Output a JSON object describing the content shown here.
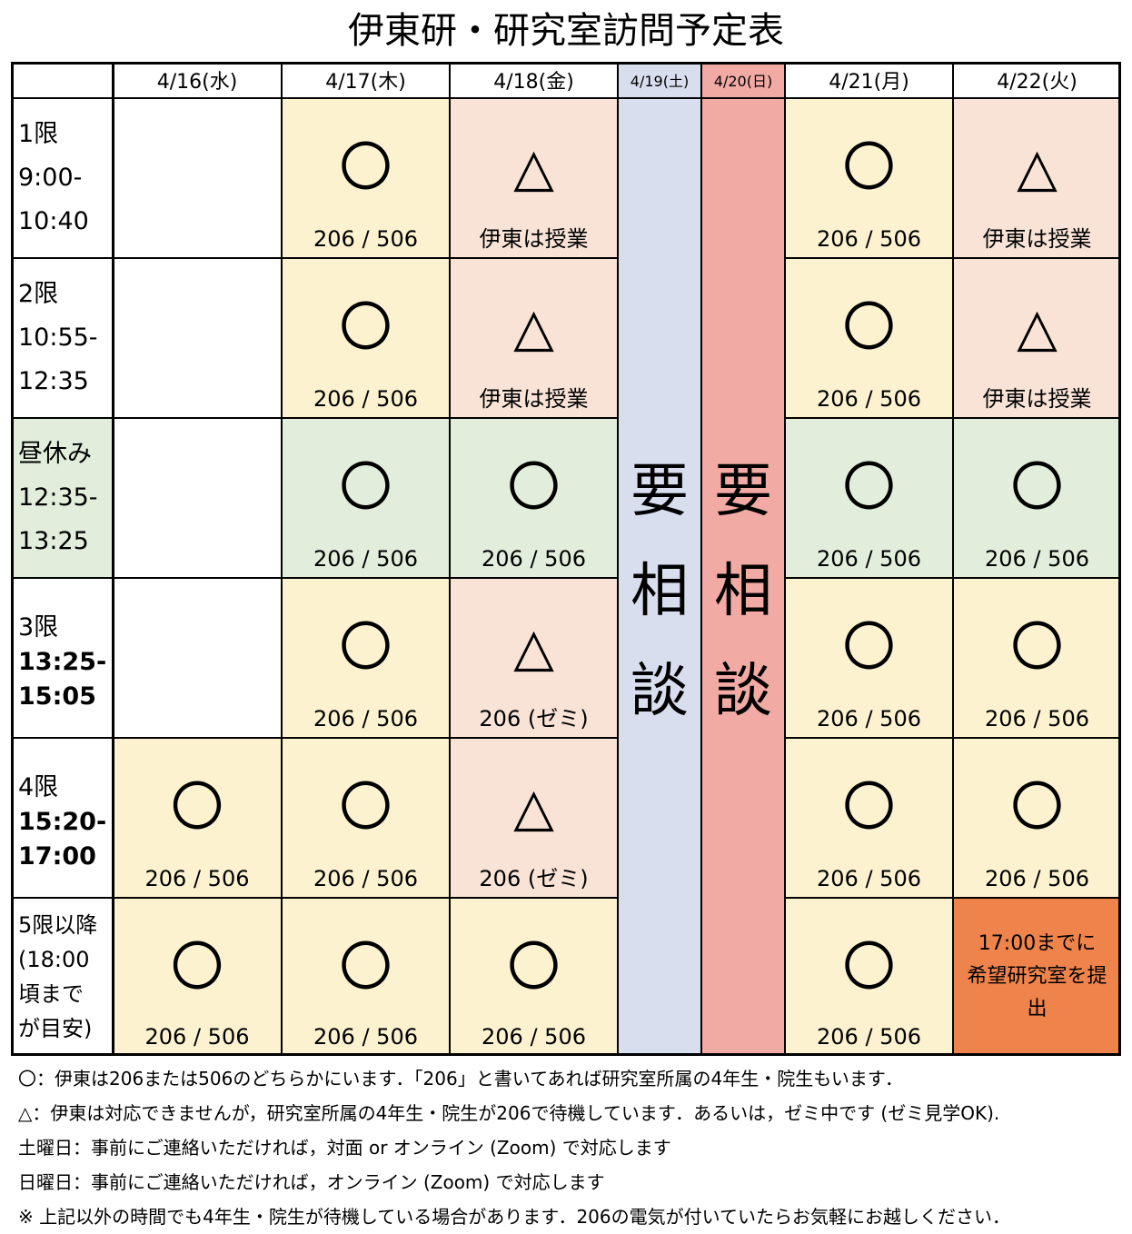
{
  "title": "伊東研・研究室訪問予定表",
  "days": [
    "4/16(水)",
    "4/17(木)",
    "4/18(金)",
    "4/19(土)",
    "4/20(日)",
    "4/21(月)",
    "4/22(火)"
  ],
  "periods": [
    {
      "name": "1限",
      "time_start": "9:00-",
      "time_end": "10:40"
    },
    {
      "name": "2限",
      "time_start": "10:55-",
      "time_end": "12:35"
    },
    {
      "name": "昼休み",
      "time_start": "12:35-",
      "time_end": "13:25"
    },
    {
      "name": "3限",
      "time_start": "13:25-",
      "time_end": "15:05"
    },
    {
      "name": "4限",
      "time_start": "15:20-",
      "time_end": "17:00"
    },
    {
      "name": "5限以降",
      "time_start": "(18:00",
      "time_end": "頃まで",
      "time_extra": "が目安)"
    }
  ],
  "cells": {
    "r0": {
      "d1": {
        "sym": "〇",
        "note": "206 / 506"
      },
      "d2": {
        "sym": "△",
        "note": "伊東は授業"
      },
      "d5": {
        "sym": "〇",
        "note": "206 / 506"
      },
      "d6": {
        "sym": "△",
        "note": "伊東は授業"
      }
    },
    "r1": {
      "d1": {
        "sym": "〇",
        "note": "206 / 506"
      },
      "d2": {
        "sym": "△",
        "note": "伊東は授業"
      },
      "d5": {
        "sym": "〇",
        "note": "206 / 506"
      },
      "d6": {
        "sym": "△",
        "note": "伊東は授業"
      }
    },
    "r2": {
      "d1": {
        "sym": "〇",
        "note": "206 / 506"
      },
      "d2": {
        "sym": "〇",
        "note": "206 / 506"
      },
      "d5": {
        "sym": "〇",
        "note": "206 / 506"
      },
      "d6": {
        "sym": "〇",
        "note": "206 / 506"
      }
    },
    "r3": {
      "d1": {
        "sym": "〇",
        "note": "206 / 506"
      },
      "d2": {
        "sym": "△",
        "note": "206 (ゼミ)"
      },
      "d5": {
        "sym": "〇",
        "note": "206 / 506"
      },
      "d6": {
        "sym": "〇",
        "note": "206 / 506"
      }
    },
    "r4": {
      "d0": {
        "sym": "〇",
        "note": "206 / 506"
      },
      "d1": {
        "sym": "〇",
        "note": "206 / 506"
      },
      "d2": {
        "sym": "△",
        "note": "206 (ゼミ)"
      },
      "d5": {
        "sym": "〇",
        "note": "206 / 506"
      },
      "d6": {
        "sym": "〇",
        "note": "206 / 506"
      }
    },
    "r5": {
      "d0": {
        "sym": "〇",
        "note": "206 / 506"
      },
      "d1": {
        "sym": "〇",
        "note": "206 / 506"
      },
      "d2": {
        "sym": "〇",
        "note": "206 / 506"
      },
      "d5": {
        "sym": "〇",
        "note": "206 / 506"
      },
      "d6": {
        "deadline_line1": "17:00までに",
        "deadline_line2": "希望研究室を提",
        "deadline_line3": "出"
      }
    }
  },
  "weekend": {
    "sat": {
      "c1": "要",
      "c2": "相",
      "c3": "談"
    },
    "sun": {
      "c1": "要",
      "c2": "相",
      "c3": "談"
    }
  },
  "notes": [
    "〇：伊東は206または506のどちらかにいます．「206」と書いてあれば研究室所属の4年生・院生もいます．",
    "△：伊東は対応できませんが，研究室所属の4年生・院生が206で待機しています．あるいは，ゼミ中です (ゼミ見学OK).",
    "土曜日：事前にご連絡いただければ，対面 or オンライン (Zoom) で対応します",
    "日曜日：事前にご連絡いただければ，オンライン (Zoom) で対応します",
    "※ 上記以外の時間でも4年生・院生が待機している場合があります．206の電気が付いていたらお気軽にお越しください．"
  ],
  "colors": {
    "yellow": "#fdf2d0",
    "peach": "#f8e3d6",
    "green": "#e2eedb",
    "blue": "#d9deef",
    "red": "#f2aaa4",
    "orange": "#ee844b"
  }
}
